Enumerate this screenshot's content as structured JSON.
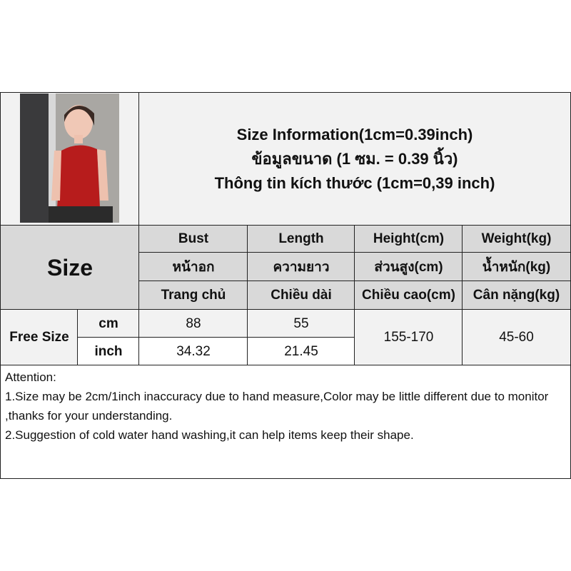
{
  "header": {
    "lines": [
      "Size Information(1cm=0.39inch)",
      "ข้อมูลขนาด (1 ซม. = 0.39 นิ้ว)",
      "Thông tin kích thước (1cm=0,39 inch)"
    ]
  },
  "table": {
    "size_label": "Size",
    "columns": [
      {
        "en": "Bust",
        "th": "หน้าอก",
        "vi": "Trang chủ"
      },
      {
        "en": "Length",
        "th": "ความยาว",
        "vi": "Chiều dài"
      },
      {
        "en": "Height(cm)",
        "th": "ส่วนสูง(cm)",
        "vi": "Chiều cao(cm)"
      },
      {
        "en": "Weight(kg)",
        "th": "น้ำหนัก(kg)",
        "vi": "Cân nặng(kg)"
      }
    ],
    "size_name": "Free Size",
    "units": [
      "cm",
      "inch"
    ],
    "cm_values": [
      "88",
      "55"
    ],
    "inch_values": [
      "34.32",
      "21.45"
    ],
    "height": "155-170",
    "weight": "45-60"
  },
  "attention": {
    "title": "Attention:",
    "lines": [
      "1.Size may be 2cm/1inch inaccuracy due to hand measure,Color may be little different due to monitor ,thanks for your understanding.",
      "2.Suggestion of cold water hand washing,it can help items keep their shape."
    ]
  }
}
